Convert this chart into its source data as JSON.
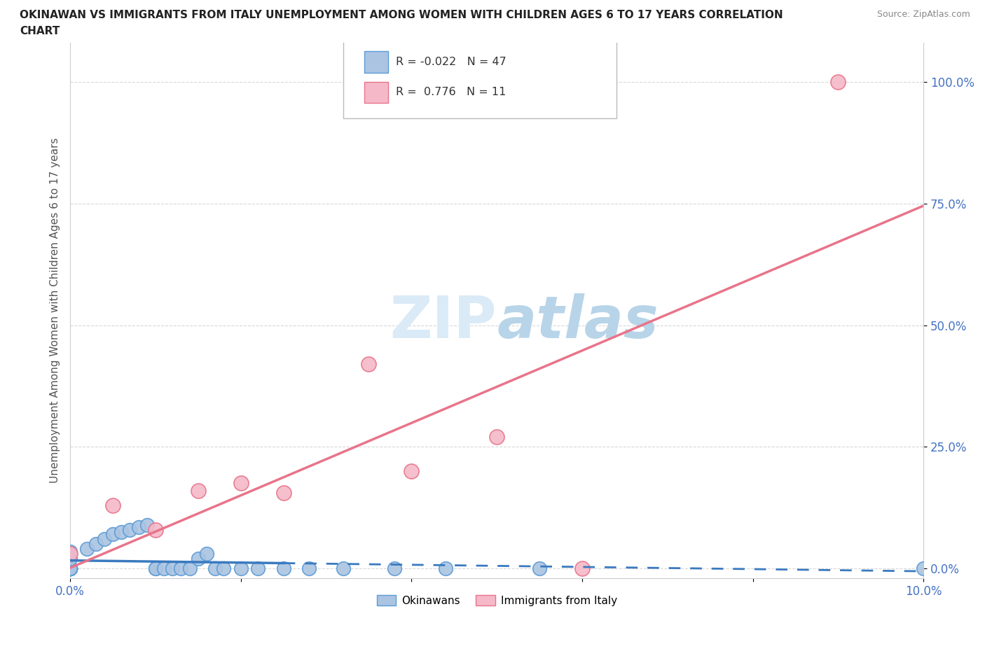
{
  "title_line1": "OKINAWAN VS IMMIGRANTS FROM ITALY UNEMPLOYMENT AMONG WOMEN WITH CHILDREN AGES 6 TO 17 YEARS CORRELATION",
  "title_line2": "CHART",
  "source": "Source: ZipAtlas.com",
  "ylabel": "Unemployment Among Women with Children Ages 6 to 17 years",
  "xlim": [
    0,
    0.1
  ],
  "ylim": [
    -0.02,
    1.08
  ],
  "yticks": [
    0,
    0.25,
    0.5,
    0.75,
    1.0
  ],
  "ytick_labels": [
    "0.0%",
    "25.0%",
    "50.0%",
    "75.0%",
    "100.0%"
  ],
  "xtick_labels_left": "0.0%",
  "xtick_labels_right": "10.0%",
  "okinawan_color": "#aac4e2",
  "okinawan_edge_color": "#5b9bd5",
  "italy_color": "#f5b8c8",
  "italy_edge_color": "#e8748a",
  "okinawan_R": -0.022,
  "okinawan_N": 47,
  "italy_R": 0.776,
  "italy_N": 11,
  "okinawan_line_color": "#3a7abf",
  "italy_line_color": "#e8748a",
  "background_color": "#ffffff",
  "grid_color": "#d8d8d8",
  "watermark_color": "#daeaf7",
  "tick_label_color": "#4472c4",
  "okinawan_x": [
    0.0,
    0.0,
    0.0,
    0.0,
    0.0,
    0.0,
    0.0,
    0.0,
    0.0,
    0.0,
    0.0,
    0.0,
    0.0,
    0.0,
    0.0,
    0.0,
    0.0,
    0.0,
    0.0,
    0.0,
    0.002,
    0.003,
    0.004,
    0.005,
    0.006,
    0.007,
    0.008,
    0.009,
    0.01,
    0.01,
    0.011,
    0.012,
    0.013,
    0.014,
    0.015,
    0.016,
    0.017,
    0.018,
    0.02,
    0.022,
    0.025,
    0.028,
    0.032,
    0.038,
    0.044,
    0.055,
    0.1
  ],
  "okinawan_y": [
    0.0,
    0.0,
    0.0,
    0.0,
    0.0,
    0.0,
    0.0,
    0.0,
    0.0,
    0.0,
    0.0,
    0.0,
    0.0,
    0.0,
    0.0,
    0.0,
    0.0,
    0.0,
    0.02,
    0.035,
    0.04,
    0.05,
    0.06,
    0.07,
    0.075,
    0.08,
    0.085,
    0.09,
    0.0,
    0.0,
    0.0,
    0.0,
    0.0,
    0.0,
    0.02,
    0.03,
    0.0,
    0.0,
    0.0,
    0.0,
    0.0,
    0.0,
    0.0,
    0.0,
    0.0,
    0.0,
    0.0
  ],
  "italy_x": [
    0.0,
    0.005,
    0.01,
    0.015,
    0.02,
    0.025,
    0.035,
    0.04,
    0.05,
    0.06,
    0.09
  ],
  "italy_y": [
    0.03,
    0.13,
    0.08,
    0.16,
    0.175,
    0.155,
    0.42,
    0.2,
    0.27,
    0.0,
    1.0
  ]
}
